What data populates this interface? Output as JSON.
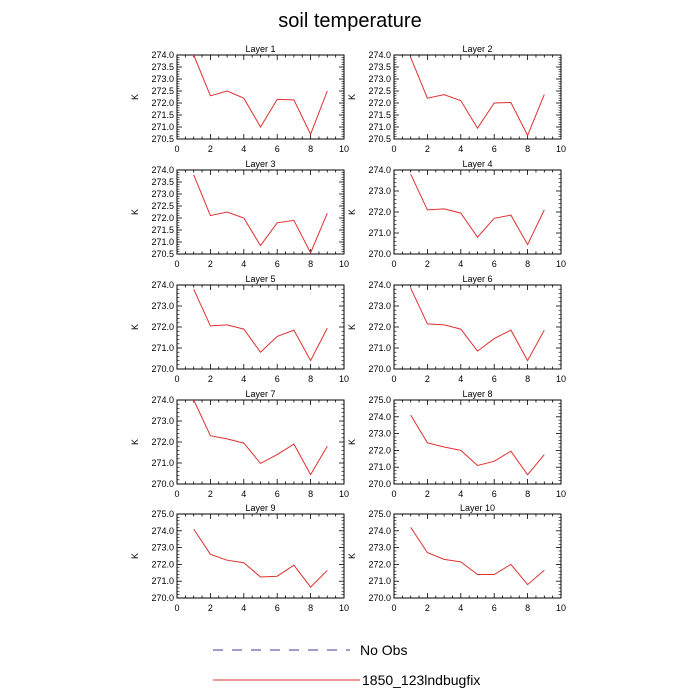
{
  "title": "soil temperature",
  "legend": {
    "entries": [
      {
        "label": "No Obs",
        "style": "dashed",
        "color": "#3b3b9a"
      },
      {
        "label": "1850_123lndbugfix",
        "style": "solid",
        "color": "#e03030"
      }
    ]
  },
  "chart_data": [
    {
      "type": "line",
      "title": "Layer 1",
      "ylabel": "K",
      "xlim": [
        0,
        10
      ],
      "xticks": [
        "0",
        "2",
        "4",
        "6",
        "8",
        "10"
      ],
      "ylim": [
        270.5,
        274.0
      ],
      "yticks": [
        "270.5",
        "271.0",
        "271.5",
        "272.0",
        "272.5",
        "273.0",
        "273.5",
        "274.0"
      ],
      "series": [
        {
          "name": "1850_123lndbugfix",
          "x": [
            1,
            2,
            3,
            4,
            5,
            6,
            7,
            8,
            9
          ],
          "values": [
            274.0,
            272.3,
            272.5,
            272.2,
            271.0,
            272.15,
            272.13,
            270.7,
            272.5
          ]
        }
      ]
    },
    {
      "type": "line",
      "title": "Layer 2",
      "ylabel": "K",
      "xlim": [
        0,
        10
      ],
      "xticks": [
        "0",
        "2",
        "4",
        "6",
        "8",
        "10"
      ],
      "ylim": [
        270.5,
        274.0
      ],
      "yticks": [
        "270.5",
        "271.0",
        "271.5",
        "272.0",
        "272.5",
        "273.0",
        "273.5",
        "274.0"
      ],
      "series": [
        {
          "name": "1850_123lndbugfix",
          "x": [
            1,
            2,
            3,
            4,
            5,
            6,
            7,
            8,
            9
          ],
          "values": [
            273.9,
            272.2,
            272.35,
            272.1,
            270.95,
            272.0,
            272.02,
            270.65,
            272.35
          ]
        }
      ]
    },
    {
      "type": "line",
      "title": "Layer 3",
      "ylabel": "K",
      "xlim": [
        0,
        10
      ],
      "xticks": [
        "0",
        "2",
        "4",
        "6",
        "8",
        "10"
      ],
      "ylim": [
        270.5,
        274.0
      ],
      "yticks": [
        "270.5",
        "271.0",
        "271.5",
        "272.0",
        "272.5",
        "273.0",
        "273.5",
        "274.0"
      ],
      "series": [
        {
          "name": "1850_123lndbugfix",
          "x": [
            1,
            2,
            3,
            4,
            5,
            6,
            7,
            8,
            9
          ],
          "values": [
            273.8,
            272.1,
            272.25,
            272.0,
            270.85,
            271.8,
            271.9,
            270.55,
            272.2
          ]
        }
      ]
    },
    {
      "type": "line",
      "title": "Layer 4",
      "ylabel": "K",
      "xlim": [
        0,
        10
      ],
      "xticks": [
        "0",
        "2",
        "4",
        "6",
        "8",
        "10"
      ],
      "ylim": [
        270.0,
        274.0
      ],
      "yticks": [
        "270.0",
        "271.0",
        "272.0",
        "273.0",
        "274.0"
      ],
      "series": [
        {
          "name": "1850_123lndbugfix",
          "x": [
            1,
            2,
            3,
            4,
            5,
            6,
            7,
            8,
            9
          ],
          "values": [
            273.8,
            272.1,
            272.15,
            271.95,
            270.8,
            271.7,
            271.85,
            270.45,
            272.1
          ]
        }
      ]
    },
    {
      "type": "line",
      "title": "Layer 5",
      "ylabel": "K",
      "xlim": [
        0,
        10
      ],
      "xticks": [
        "0",
        "2",
        "4",
        "6",
        "8",
        "10"
      ],
      "ylim": [
        270.0,
        274.0
      ],
      "yticks": [
        "270.0",
        "271.0",
        "272.0",
        "273.0",
        "274.0"
      ],
      "series": [
        {
          "name": "1850_123lndbugfix",
          "x": [
            1,
            2,
            3,
            4,
            5,
            6,
            7,
            8,
            9
          ],
          "values": [
            273.8,
            272.05,
            272.1,
            271.9,
            270.8,
            271.55,
            271.85,
            270.4,
            271.95
          ]
        }
      ]
    },
    {
      "type": "line",
      "title": "Layer 6",
      "ylabel": "K",
      "xlim": [
        0,
        10
      ],
      "xticks": [
        "0",
        "2",
        "4",
        "6",
        "8",
        "10"
      ],
      "ylim": [
        270.0,
        274.0
      ],
      "yticks": [
        "270.0",
        "271.0",
        "272.0",
        "273.0",
        "274.0"
      ],
      "series": [
        {
          "name": "1850_123lndbugfix",
          "x": [
            1,
            2,
            3,
            4,
            5,
            6,
            7,
            8,
            9
          ],
          "values": [
            273.85,
            272.15,
            272.1,
            271.9,
            270.85,
            271.45,
            271.85,
            270.4,
            271.85
          ]
        }
      ]
    },
    {
      "type": "line",
      "title": "Layer 7",
      "ylabel": "K",
      "xlim": [
        0,
        10
      ],
      "xticks": [
        "0",
        "2",
        "4",
        "6",
        "8",
        "10"
      ],
      "ylim": [
        270.0,
        274.0
      ],
      "yticks": [
        "270.0",
        "271.0",
        "272.0",
        "273.0",
        "274.0"
      ],
      "series": [
        {
          "name": "1850_123lndbugfix",
          "x": [
            1,
            2,
            3,
            4,
            5,
            6,
            7,
            8,
            9
          ],
          "values": [
            274.0,
            272.3,
            272.15,
            271.95,
            270.98,
            271.4,
            271.9,
            270.45,
            271.8
          ]
        }
      ]
    },
    {
      "type": "line",
      "title": "Layer 8",
      "ylabel": "K",
      "xlim": [
        0,
        10
      ],
      "xticks": [
        "0",
        "2",
        "4",
        "6",
        "8",
        "10"
      ],
      "ylim": [
        270.0,
        275.0
      ],
      "yticks": [
        "270.0",
        "271.0",
        "272.0",
        "273.0",
        "274.0",
        "275.0"
      ],
      "series": [
        {
          "name": "1850_123lndbugfix",
          "x": [
            1,
            2,
            3,
            4,
            5,
            6,
            7,
            8,
            9
          ],
          "values": [
            274.1,
            272.45,
            272.2,
            272.0,
            271.1,
            271.35,
            271.95,
            270.55,
            271.75
          ]
        }
      ]
    },
    {
      "type": "line",
      "title": "Layer 9",
      "ylabel": "K",
      "xlim": [
        0,
        10
      ],
      "xticks": [
        "0",
        "2",
        "4",
        "6",
        "8",
        "10"
      ],
      "ylim": [
        270.0,
        275.0
      ],
      "yticks": [
        "270.0",
        "271.0",
        "272.0",
        "273.0",
        "274.0",
        "275.0"
      ],
      "series": [
        {
          "name": "1850_123lndbugfix",
          "x": [
            1,
            2,
            3,
            4,
            5,
            6,
            7,
            8,
            9
          ],
          "values": [
            274.1,
            272.6,
            272.25,
            272.1,
            271.25,
            271.3,
            271.95,
            270.65,
            271.65
          ]
        }
      ]
    },
    {
      "type": "line",
      "title": "Layer 10",
      "ylabel": "K",
      "xlim": [
        0,
        10
      ],
      "xticks": [
        "0",
        "2",
        "4",
        "6",
        "8",
        "10"
      ],
      "ylim": [
        270.0,
        275.0
      ],
      "yticks": [
        "270.0",
        "271.0",
        "272.0",
        "273.0",
        "274.0",
        "275.0"
      ],
      "series": [
        {
          "name": "1850_123lndbugfix",
          "x": [
            1,
            2,
            3,
            4,
            5,
            6,
            7,
            8,
            9
          ],
          "values": [
            274.2,
            272.7,
            272.3,
            272.15,
            271.4,
            271.4,
            272.0,
            270.8,
            271.65
          ]
        }
      ]
    }
  ]
}
